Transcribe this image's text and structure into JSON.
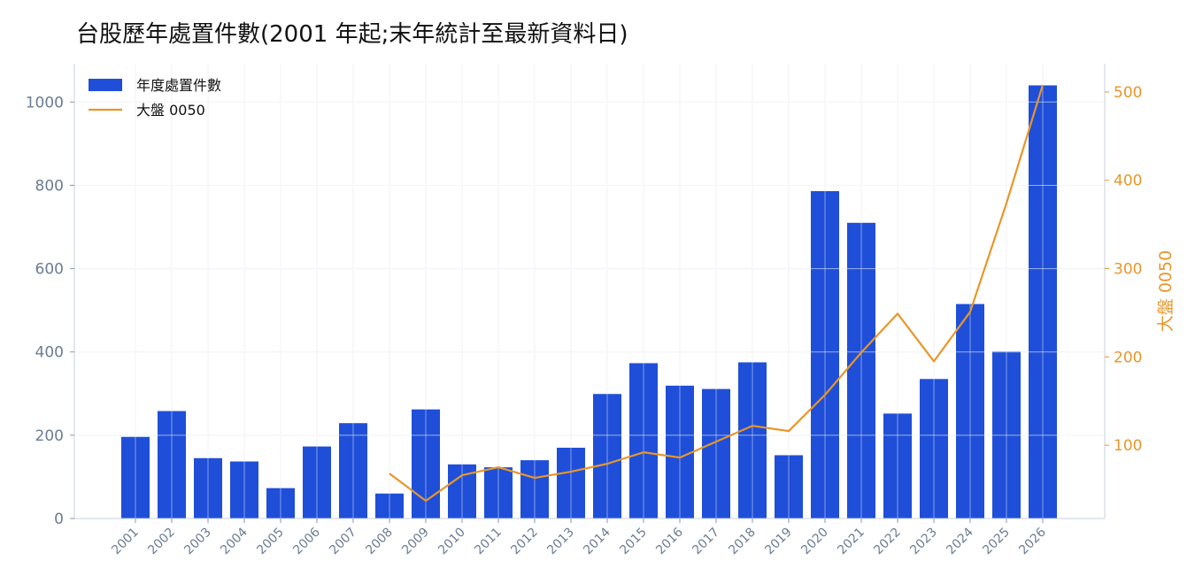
{
  "chart_data": {
    "type": "bar",
    "title": "台股歷年處置件數(2001 年起;末年統計至最新資料日)",
    "categories": [
      "2001",
      "2002",
      "2003",
      "2004",
      "2005",
      "2006",
      "2007",
      "2008",
      "2009",
      "2010",
      "2011",
      "2012",
      "2013",
      "2014",
      "2015",
      "2016",
      "2017",
      "2018",
      "2019",
      "2020",
      "2021",
      "2022",
      "2023",
      "2024",
      "2025",
      "2026"
    ],
    "series": [
      {
        "name": "年度處置件數",
        "type": "bar",
        "axis": "left",
        "color": "#1f4fd8",
        "values": [
          196,
          258,
          145,
          137,
          73,
          173,
          229,
          60,
          262,
          130,
          123,
          140,
          170,
          299,
          373,
          319,
          311,
          375,
          152,
          786,
          710,
          252,
          335,
          515,
          401,
          1040
        ]
      },
      {
        "name": "大盤 0050",
        "type": "line",
        "axis": "right",
        "color": "#e8962a",
        "values": [
          null,
          null,
          null,
          null,
          null,
          null,
          null,
          68,
          37,
          66,
          75,
          63,
          70,
          79,
          92,
          86,
          104,
          122,
          116,
          157,
          205,
          249,
          195,
          251,
          374,
          508
        ]
      }
    ],
    "y_left": {
      "label": "",
      "ticks": [
        0,
        200,
        400,
        600,
        800,
        1000
      ],
      "lim": [
        0,
        1092
      ]
    },
    "y_right": {
      "label": "大盤 0050",
      "ticks": [
        100,
        200,
        300,
        400,
        500
      ],
      "lim": [
        17,
        532
      ],
      "color": "#e8962a"
    },
    "xlabel": "",
    "grid": true,
    "legend_position": "top-left"
  }
}
